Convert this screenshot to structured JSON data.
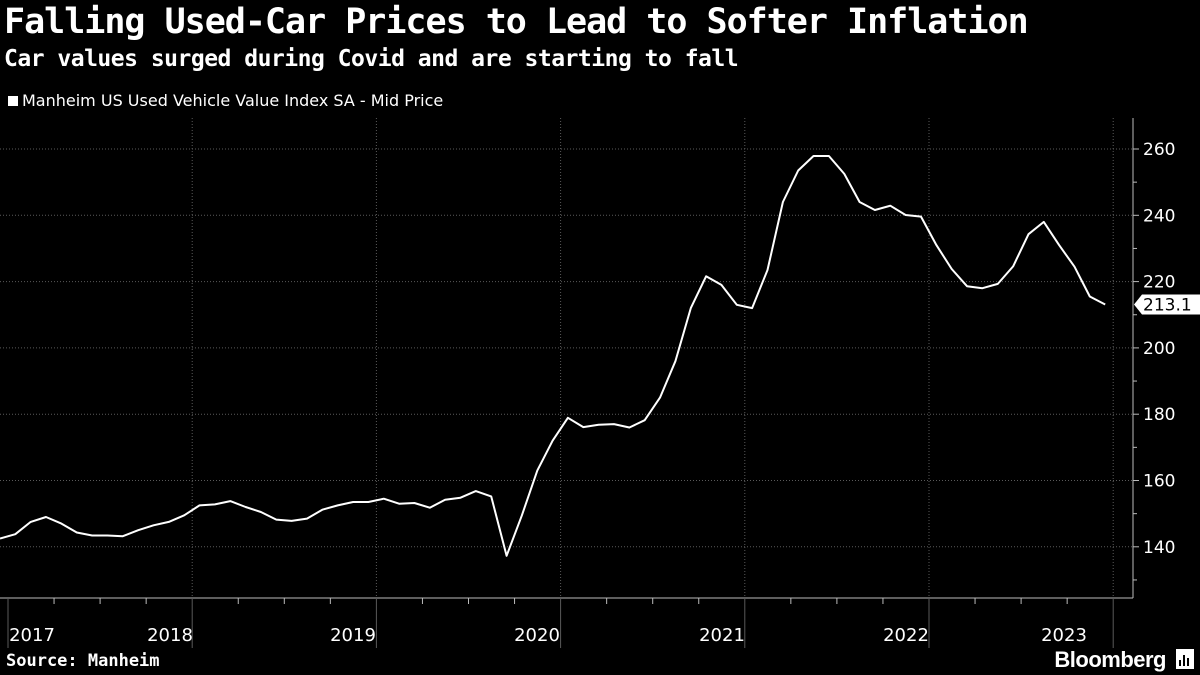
{
  "header": {
    "title": "Falling Used-Car Prices to Lead to Softer Inflation",
    "subtitle": "Car values surged during Covid and are starting to fall"
  },
  "legend": {
    "label": "Manheim US Used Vehicle Value Index SA - Mid Price"
  },
  "footer": {
    "source": "Source: Manheim",
    "brand": "Bloomberg",
    "brand_icon": "bloomberg-chart-icon"
  },
  "colors": {
    "background": "#000000",
    "line": "#ffffff",
    "grid": "#5a5a5a",
    "text": "#ffffff"
  },
  "chart_data": {
    "type": "line",
    "title": "Falling Used-Car Prices to Lead to Softer Inflation",
    "subtitle": "Car values surged during Covid and are starting to fall",
    "xlabel": "",
    "ylabel": "",
    "ylim": [
      125,
      270
    ],
    "yticks": [
      140,
      160,
      180,
      200,
      220,
      240,
      260
    ],
    "year_labels": [
      "2017",
      "2018",
      "2019",
      "2020",
      "2021",
      "2022",
      "2023"
    ],
    "last_value_label": "213.1",
    "grid": true,
    "legend_position": "top-left",
    "series": [
      {
        "name": "Manheim US Used Vehicle Value Index SA - Mid Price",
        "start": "2017-01",
        "frequency": "monthly",
        "values": [
          142.5,
          143.8,
          147.5,
          149,
          147,
          144.3,
          143.4,
          143.4,
          143.2,
          145,
          146.5,
          147.5,
          149.5,
          152.5,
          152.8,
          153.8,
          152,
          150.5,
          148.2,
          147.8,
          148.5,
          151.2,
          152.5,
          153.5,
          153.5,
          154.5,
          153,
          153.2,
          151.8,
          154.2,
          154.8,
          156.8,
          155.2,
          137.3,
          149.5,
          163,
          172,
          178.9,
          176.1,
          176.8,
          177,
          176,
          178.2,
          185,
          196,
          212,
          221.6,
          219,
          213,
          212,
          223.5,
          244,
          253.5,
          257.9,
          257.9,
          252.5,
          244,
          241.6,
          242.9,
          240.1,
          239.6,
          231,
          223.8,
          218.6,
          218,
          219.3,
          224.6,
          234.3,
          238,
          231,
          224.5,
          215.5,
          213.1
        ]
      }
    ]
  }
}
